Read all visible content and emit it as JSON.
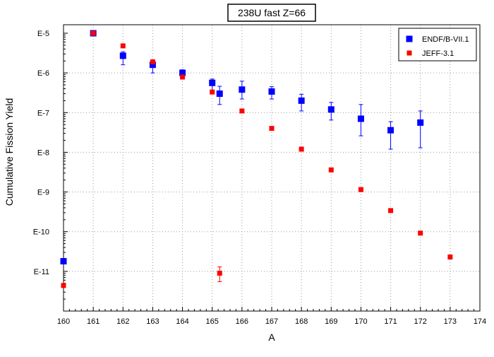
{
  "chart_data": {
    "type": "scatter",
    "title": "238U fast Z=66",
    "xlabel": "A",
    "ylabel": "Cumulative Fission Yield",
    "xlim": [
      160,
      174
    ],
    "ylim": [
      1e-12,
      1e-05
    ],
    "yscale": "log",
    "grid": true,
    "legend_position": "top-right",
    "xticks": [
      160,
      161,
      162,
      163,
      164,
      165,
      166,
      167,
      168,
      169,
      170,
      171,
      172,
      173,
      174
    ],
    "xtick_labels": [
      "160",
      "161",
      "162",
      "163",
      "164",
      "165",
      "166",
      "167",
      "168",
      "169",
      "170",
      "171",
      "172",
      "173",
      "174"
    ],
    "yticks": [
      1e-05,
      1e-06,
      1e-07,
      1e-08,
      1e-09,
      1e-10,
      1e-11
    ],
    "ytick_labels": [
      "E-5",
      "E-6",
      "E-7",
      "E-8",
      "E-9",
      "E-10",
      "E-11"
    ],
    "series": [
      {
        "name": "ENDF/B-VII.1",
        "color": "#0000ff",
        "marker": "square",
        "points": [
          {
            "x": 160,
            "y": 1.8e-11
          },
          {
            "x": 161,
            "y": 1e-05,
            "err_lo": 9e-06,
            "err_hi": 1.1e-05
          },
          {
            "x": 162,
            "y": 2.7e-06,
            "err_lo": 1.6e-06,
            "err_hi": 3.4e-06
          },
          {
            "x": 163,
            "y": 1.6e-06,
            "err_lo": 1e-06,
            "err_hi": 2e-06
          },
          {
            "x": 164,
            "y": 1e-06,
            "err_lo": 7e-07,
            "err_hi": 1.2e-06
          },
          {
            "x": 165,
            "y": 5.6e-07,
            "err_lo": 3.5e-07,
            "err_hi": 7e-07
          },
          {
            "x": 165.25,
            "y": 3e-07,
            "err_lo": 1.6e-07,
            "err_hi": 4.6e-07
          },
          {
            "x": 166,
            "y": 3.8e-07,
            "err_lo": 2.2e-07,
            "err_hi": 6.2e-07
          },
          {
            "x": 167,
            "y": 3.4e-07,
            "err_lo": 2.2e-07,
            "err_hi": 4.5e-07
          },
          {
            "x": 168,
            "y": 2e-07,
            "err_lo": 1.1e-07,
            "err_hi": 2.9e-07
          },
          {
            "x": 169,
            "y": 1.2e-07,
            "err_lo": 6.5e-08,
            "err_hi": 1.8e-07
          },
          {
            "x": 170,
            "y": 7e-08,
            "err_lo": 2.6e-08,
            "err_hi": 1.6e-07
          },
          {
            "x": 171,
            "y": 3.6e-08,
            "err_lo": 1.2e-08,
            "err_hi": 5.9e-08
          },
          {
            "x": 172,
            "y": 5.6e-08,
            "err_lo": 1.3e-08,
            "err_hi": 1.1e-07
          }
        ]
      },
      {
        "name": "JEFF-3.1",
        "color": "#ff0000",
        "marker": "square",
        "points": [
          {
            "x": 160,
            "y": 4.4e-12
          },
          {
            "x": 161,
            "y": 1e-05
          },
          {
            "x": 162,
            "y": 4.8e-06
          },
          {
            "x": 163,
            "y": 1.9e-06
          },
          {
            "x": 164,
            "y": 7.9e-07
          },
          {
            "x": 165,
            "y": 3.3e-07
          },
          {
            "x": 165.25,
            "y": 9e-12,
            "err_lo": 5.5e-12,
            "err_hi": 1.3e-11
          },
          {
            "x": 166,
            "y": 1.1e-07
          },
          {
            "x": 167,
            "y": 4e-08
          },
          {
            "x": 168,
            "y": 1.2e-08
          },
          {
            "x": 169,
            "y": 3.6e-09
          },
          {
            "x": 170,
            "y": 1.15e-09
          },
          {
            "x": 171,
            "y": 3.4e-10
          },
          {
            "x": 172,
            "y": 9.2e-11
          },
          {
            "x": 173,
            "y": 2.3e-11
          }
        ]
      }
    ]
  }
}
